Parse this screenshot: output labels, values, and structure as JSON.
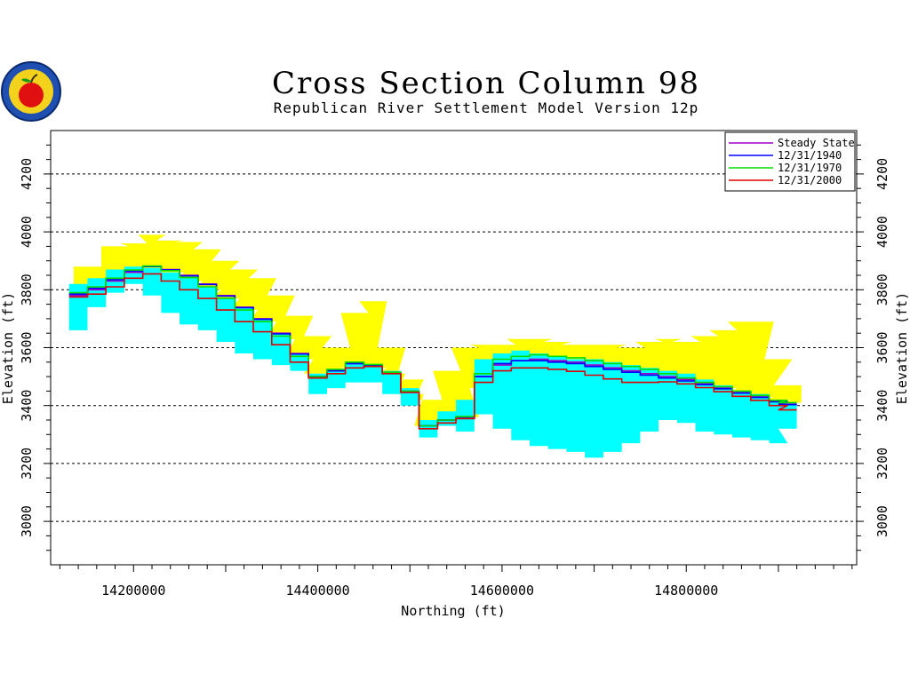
{
  "colors": {
    "background": "#ffffff",
    "axis": "#000000",
    "gridline": "#000000",
    "upper_fill": "#ffff00",
    "lower_fill": "#00ffff"
  },
  "logo": {
    "icon": "apple-seal-logo"
  },
  "chart_data": {
    "type": "area",
    "title": "Cross Section Column 98",
    "subtitle": "Republican River Settlement Model Version 12p",
    "xlabel": "Northing (ft)",
    "ylabel": "Elevation (ft)",
    "xlim": [
      14110000,
      14985000
    ],
    "ylim": [
      2850,
      4350
    ],
    "xticks": [
      14200000,
      14400000,
      14600000,
      14800000
    ],
    "xtick_labels": [
      "14200000",
      "14400000",
      "14600000",
      "14800000"
    ],
    "yticks": [
      3000,
      3200,
      3400,
      3600,
      3800,
      4000,
      4200
    ],
    "ytick_labels": [
      "3000",
      "3200",
      "3400",
      "3600",
      "3800",
      "4000",
      "4200"
    ],
    "grid": "horizontal dashed at major y ticks",
    "legend_position": "top-right",
    "layers": [
      {
        "name": "upper_layer",
        "color": "#ffff00",
        "x": [
          14150000,
          14180000,
          14200000,
          14220000,
          14240000,
          14260000,
          14280000,
          14300000,
          14320000,
          14340000,
          14360000,
          14380000,
          14400000,
          14420000,
          14440000,
          14460000,
          14480000,
          14500000,
          14520000,
          14540000,
          14560000,
          14580000,
          14600000,
          14620000,
          14640000,
          14660000,
          14680000,
          14700000,
          14720000,
          14740000,
          14760000,
          14780000,
          14800000,
          14820000,
          14840000,
          14860000,
          14880000,
          14900000,
          14910000
        ],
        "top": [
          3880,
          3950,
          3960,
          3990,
          3970,
          3965,
          3940,
          3900,
          3870,
          3840,
          3780,
          3710,
          3640,
          3600,
          3720,
          3760,
          3600,
          3490,
          3420,
          3520,
          3600,
          3610,
          3610,
          3630,
          3630,
          3620,
          3610,
          3610,
          3610,
          3600,
          3620,
          3630,
          3620,
          3640,
          3660,
          3690,
          3690,
          3560,
          3470
        ],
        "bottom": [
          3790,
          3820,
          3850,
          3870,
          3860,
          3830,
          3800,
          3770,
          3730,
          3690,
          3630,
          3560,
          3510,
          3500,
          3530,
          3530,
          3510,
          3440,
          3330,
          3340,
          3360,
          3460,
          3540,
          3560,
          3560,
          3550,
          3540,
          3530,
          3520,
          3510,
          3500,
          3490,
          3480,
          3470,
          3460,
          3440,
          3430,
          3420,
          3410
        ]
      },
      {
        "name": "lower_layer",
        "color": "#00ffff",
        "x": [
          14140000,
          14160000,
          14180000,
          14200000,
          14220000,
          14240000,
          14260000,
          14280000,
          14300000,
          14320000,
          14340000,
          14360000,
          14380000,
          14400000,
          14420000,
          14440000,
          14460000,
          14480000,
          14500000,
          14520000,
          14540000,
          14560000,
          14580000,
          14600000,
          14620000,
          14640000,
          14660000,
          14680000,
          14700000,
          14720000,
          14740000,
          14760000,
          14780000,
          14800000,
          14820000,
          14840000,
          14860000,
          14880000,
          14900000,
          14910000
        ],
        "top": [
          3820,
          3840,
          3870,
          3880,
          3875,
          3860,
          3840,
          3810,
          3770,
          3740,
          3700,
          3650,
          3580,
          3510,
          3520,
          3545,
          3540,
          3520,
          3460,
          3350,
          3380,
          3420,
          3560,
          3580,
          3590,
          3580,
          3570,
          3560,
          3560,
          3550,
          3540,
          3530,
          3520,
          3510,
          3490,
          3470,
          3450,
          3440,
          3420,
          3410
        ],
        "bottom": [
          3660,
          3740,
          3790,
          3820,
          3780,
          3720,
          3680,
          3660,
          3620,
          3580,
          3560,
          3540,
          3520,
          3440,
          3460,
          3480,
          3480,
          3440,
          3400,
          3290,
          3330,
          3310,
          3370,
          3320,
          3280,
          3260,
          3250,
          3240,
          3220,
          3240,
          3270,
          3310,
          3350,
          3340,
          3310,
          3300,
          3290,
          3280,
          3270,
          3320
        ]
      }
    ],
    "series": [
      {
        "name": "Steady State",
        "color": "#a000c8",
        "x": [
          14140000,
          14160000,
          14180000,
          14200000,
          14220000,
          14240000,
          14260000,
          14280000,
          14300000,
          14320000,
          14340000,
          14360000,
          14380000,
          14400000,
          14420000,
          14440000,
          14460000,
          14480000,
          14500000,
          14520000,
          14540000,
          14560000,
          14580000,
          14600000,
          14620000,
          14640000,
          14660000,
          14680000,
          14700000,
          14720000,
          14740000,
          14760000,
          14780000,
          14800000,
          14820000,
          14840000,
          14860000,
          14880000,
          14900000,
          14910000
        ],
        "y": [
          3780,
          3800,
          3830,
          3860,
          3880,
          3870,
          3850,
          3820,
          3780,
          3740,
          3700,
          3650,
          3580,
          3500,
          3520,
          3545,
          3540,
          3515,
          3450,
          3330,
          3350,
          3360,
          3500,
          3540,
          3555,
          3560,
          3555,
          3550,
          3540,
          3530,
          3520,
          3510,
          3500,
          3490,
          3475,
          3460,
          3445,
          3430,
          3415,
          3405
        ]
      },
      {
        "name": "12/31/1940",
        "color": "#0000ff",
        "x": [
          14140000,
          14160000,
          14180000,
          14200000,
          14220000,
          14240000,
          14260000,
          14280000,
          14300000,
          14320000,
          14340000,
          14360000,
          14380000,
          14400000,
          14420000,
          14440000,
          14460000,
          14480000,
          14500000,
          14520000,
          14540000,
          14560000,
          14580000,
          14600000,
          14620000,
          14640000,
          14660000,
          14680000,
          14700000,
          14720000,
          14740000,
          14760000,
          14780000,
          14800000,
          14820000,
          14840000,
          14860000,
          14880000,
          14900000,
          14910000
        ],
        "y": [
          3785,
          3805,
          3835,
          3865,
          3880,
          3868,
          3848,
          3818,
          3778,
          3738,
          3698,
          3648,
          3578,
          3500,
          3520,
          3545,
          3538,
          3512,
          3448,
          3330,
          3350,
          3360,
          3500,
          3545,
          3555,
          3555,
          3550,
          3545,
          3535,
          3525,
          3515,
          3505,
          3495,
          3485,
          3472,
          3458,
          3443,
          3428,
          3413,
          3403
        ]
      },
      {
        "name": "12/31/1970",
        "color": "#00dd00",
        "x": [
          14140000,
          14160000,
          14180000,
          14200000,
          14220000,
          14240000,
          14260000,
          14280000,
          14300000,
          14320000,
          14340000,
          14360000,
          14380000,
          14400000,
          14420000,
          14440000,
          14460000,
          14480000,
          14500000,
          14520000,
          14540000,
          14560000,
          14580000,
          14600000,
          14620000,
          14640000,
          14660000,
          14680000,
          14700000,
          14720000,
          14740000,
          14760000,
          14780000,
          14800000,
          14820000,
          14840000,
          14860000,
          14880000,
          14900000,
          14910000
        ],
        "y": [
          3790,
          3810,
          3840,
          3868,
          3882,
          3866,
          3842,
          3810,
          3770,
          3730,
          3690,
          3640,
          3570,
          3500,
          3525,
          3550,
          3542,
          3515,
          3450,
          3330,
          3350,
          3362,
          3510,
          3560,
          3570,
          3575,
          3570,
          3565,
          3555,
          3545,
          3535,
          3525,
          3510,
          3495,
          3480,
          3465,
          3450,
          3435,
          3418,
          3410
        ]
      },
      {
        "name": "12/31/2000",
        "color": "#e00000",
        "x": [
          14140000,
          14160000,
          14180000,
          14200000,
          14220000,
          14240000,
          14260000,
          14280000,
          14300000,
          14320000,
          14340000,
          14360000,
          14380000,
          14400000,
          14420000,
          14440000,
          14460000,
          14480000,
          14500000,
          14520000,
          14540000,
          14560000,
          14580000,
          14600000,
          14620000,
          14640000,
          14660000,
          14680000,
          14700000,
          14720000,
          14740000,
          14760000,
          14780000,
          14800000,
          14820000,
          14840000,
          14860000,
          14880000,
          14900000,
          14910000
        ],
        "y": [
          3775,
          3785,
          3810,
          3840,
          3855,
          3830,
          3800,
          3770,
          3730,
          3690,
          3655,
          3610,
          3550,
          3495,
          3510,
          3530,
          3535,
          3510,
          3445,
          3320,
          3340,
          3355,
          3480,
          3520,
          3530,
          3530,
          3525,
          3518,
          3505,
          3492,
          3480,
          3480,
          3482,
          3475,
          3462,
          3448,
          3432,
          3418,
          3400,
          3385
        ]
      }
    ]
  }
}
